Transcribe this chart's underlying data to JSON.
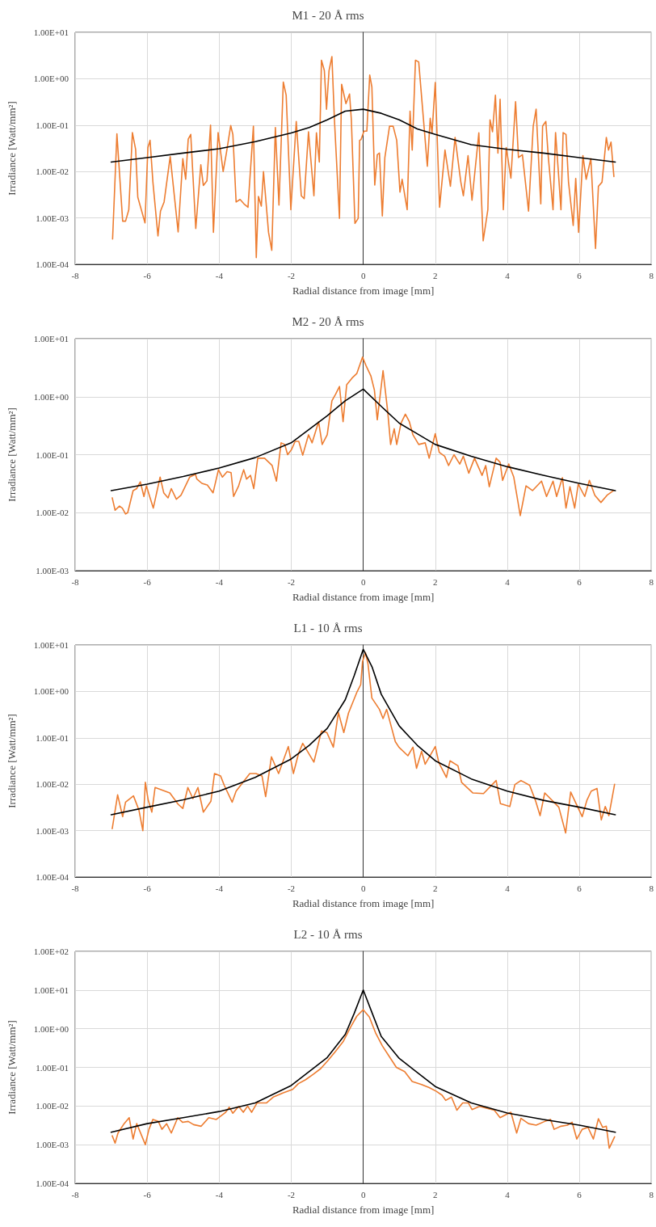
{
  "chart_data": [
    {
      "type": "line",
      "title": "M1 - 20 Å rms",
      "xlabel": "Radial distance from image [mm]",
      "ylabel": "Irradiance [Watt/mm²]",
      "log": "y",
      "grid": true,
      "marker": "none",
      "line_style": "solid",
      "xlim": [
        -8,
        8
      ],
      "xticks": [
        -8,
        -6,
        -4,
        -2,
        0,
        2,
        4,
        6,
        8
      ],
      "ylim": [
        0.0001,
        10
      ],
      "yticks": [
        {
          "value": 0.0001,
          "label": "1.00E-04"
        },
        {
          "value": 0.001,
          "label": "1.00E-03"
        },
        {
          "value": 0.01,
          "label": "1.00E-02"
        },
        {
          "value": 0.1,
          "label": "1.00E-01"
        },
        {
          "value": 1,
          "label": "1.00E+00"
        },
        {
          "value": 10,
          "label": "1.00E+01"
        }
      ],
      "series": [
        {
          "color": "#ed7d31",
          "x": [
            -6.96,
            -6.84,
            -6.68,
            -6.6,
            -6.51,
            -6.41,
            -6.32,
            -6.26,
            -6.06,
            -5.98,
            -5.92,
            -5.84,
            -5.7,
            -5.63,
            -5.53,
            -5.36,
            -5.14,
            -5.01,
            -4.93,
            -4.86,
            -4.79,
            -4.65,
            -4.51,
            -4.44,
            -4.34,
            -4.24,
            -4.16,
            -4.03,
            -3.89,
            -3.8,
            -3.68,
            -3.62,
            -3.53,
            -3.42,
            -3.31,
            -3.2,
            -3.05,
            -2.97,
            -2.91,
            -2.83,
            -2.77,
            -2.63,
            -2.54,
            -2.44,
            -2.34,
            -2.22,
            -2.14,
            -2.01,
            -1.86,
            -1.72,
            -1.64,
            -1.52,
            -1.37,
            -1.3,
            -1.22,
            -1.16,
            -1.08,
            -1.02,
            -0.95,
            -0.87,
            -0.8,
            -0.66,
            -0.6,
            -0.48,
            -0.38,
            -0.33,
            -0.23,
            -0.14,
            -0.1,
            -0.06,
            0.02,
            0.1,
            0.18,
            0.24,
            0.32,
            0.39,
            0.45,
            0.53,
            0.6,
            0.73,
            0.83,
            0.93,
            1.02,
            1.08,
            1.22,
            1.3,
            1.36,
            1.45,
            1.54,
            1.78,
            1.86,
            1.91,
            2.0,
            2.12,
            2.27,
            2.42,
            2.55,
            2.71,
            2.78,
            2.91,
            3.02,
            3.21,
            3.33,
            3.46,
            3.52,
            3.59,
            3.67,
            3.74,
            3.8,
            3.89,
            3.97,
            4.1,
            4.23,
            4.31,
            4.42,
            4.59,
            4.72,
            4.8,
            4.93,
            4.98,
            5.07,
            5.14,
            5.27,
            5.34,
            5.41,
            5.49,
            5.55,
            5.63,
            5.7,
            5.83,
            5.9,
            5.98,
            6.1,
            6.19,
            6.32,
            6.45,
            6.53,
            6.63,
            6.75,
            6.81,
            6.88,
            6.96
          ],
          "values": [
            0.00035,
            0.065,
            0.00085,
            0.00085,
            0.0015,
            0.069,
            0.03,
            0.0028,
            0.00078,
            0.033,
            0.047,
            0.0059,
            0.00041,
            0.0014,
            0.0022,
            0.021,
            0.0005,
            0.019,
            0.0068,
            0.05,
            0.063,
            0.00059,
            0.014,
            0.005,
            0.0063,
            0.1,
            0.00049,
            0.069,
            0.01,
            0.025,
            0.098,
            0.063,
            0.0022,
            0.0025,
            0.002,
            0.0017,
            0.095,
            0.00014,
            0.0029,
            0.0018,
            0.01,
            0.00049,
            0.0002,
            0.089,
            0.0019,
            0.85,
            0.44,
            0.0015,
            0.12,
            0.003,
            0.0026,
            0.072,
            0.003,
            0.068,
            0.016,
            2.5,
            1.5,
            0.22,
            1.5,
            3.0,
            0.13,
            0.00098,
            0.76,
            0.29,
            0.47,
            0.13,
            0.00076,
            0.00098,
            0.047,
            0.049,
            0.074,
            0.074,
            1.2,
            0.66,
            0.0051,
            0.023,
            0.025,
            0.0011,
            0.02,
            0.095,
            0.095,
            0.047,
            0.0036,
            0.0068,
            0.0015,
            0.2,
            0.029,
            2.5,
            2.3,
            0.013,
            0.14,
            0.068,
            0.83,
            0.0017,
            0.029,
            0.0048,
            0.054,
            0.0059,
            0.003,
            0.022,
            0.0024,
            0.068,
            0.00032,
            0.0015,
            0.13,
            0.072,
            0.44,
            0.025,
            0.36,
            0.0015,
            0.033,
            0.0072,
            0.32,
            0.02,
            0.023,
            0.0014,
            0.095,
            0.22,
            0.002,
            0.095,
            0.12,
            0.02,
            0.0015,
            0.069,
            0.012,
            0.0015,
            0.069,
            0.063,
            0.0059,
            0.00069,
            0.0071,
            0.00049,
            0.022,
            0.0068,
            0.019,
            0.00022,
            0.0048,
            0.0059,
            0.054,
            0.029,
            0.043,
            0.0078
          ]
        },
        {
          "color": "#000000",
          "x": [
            -7,
            -6,
            -5,
            -4,
            -3,
            -2,
            -1.5,
            -1,
            -0.5,
            0,
            0.5,
            1,
            1.5,
            2,
            3,
            4,
            5,
            6,
            7
          ],
          "values": [
            0.016,
            0.02,
            0.025,
            0.031,
            0.044,
            0.068,
            0.089,
            0.13,
            0.2,
            0.22,
            0.18,
            0.13,
            0.083,
            0.063,
            0.038,
            0.03,
            0.025,
            0.02,
            0.016
          ]
        }
      ]
    },
    {
      "type": "line",
      "title": "M2 - 20 Å rms",
      "xlabel": "Radial distance from image [mm]",
      "ylabel": "Irradiance [Watt/mm²]",
      "log": "y",
      "grid": true,
      "marker": "none",
      "line_style": "solid",
      "xlim": [
        -8,
        8
      ],
      "xticks": [
        -8,
        -6,
        -4,
        -2,
        0,
        2,
        4,
        6,
        8
      ],
      "ylim": [
        0.001,
        10
      ],
      "yticks": [
        {
          "value": 0.001,
          "label": "1.00E-03"
        },
        {
          "value": 0.01,
          "label": "1.00E-02"
        },
        {
          "value": 0.1,
          "label": "1.00E-01"
        },
        {
          "value": 1,
          "label": "1.00E+00"
        },
        {
          "value": 10,
          "label": "1.00E+01"
        }
      ],
      "series": [
        {
          "color": "#ed7d31",
          "x": [
            -6.97,
            -6.89,
            -6.77,
            -6.69,
            -6.6,
            -6.54,
            -6.39,
            -6.29,
            -6.19,
            -6.09,
            -6.02,
            -5.93,
            -5.83,
            -5.64,
            -5.54,
            -5.42,
            -5.33,
            -5.19,
            -5.06,
            -4.82,
            -4.66,
            -4.62,
            -4.48,
            -4.33,
            -4.17,
            -4.02,
            -3.91,
            -3.78,
            -3.67,
            -3.6,
            -3.46,
            -3.32,
            -3.24,
            -3.13,
            -3.04,
            -2.93,
            -2.74,
            -2.53,
            -2.41,
            -2.28,
            -2.18,
            -2.1,
            -2.0,
            -1.89,
            -1.79,
            -1.68,
            -1.52,
            -1.42,
            -1.24,
            -1.14,
            -1.0,
            -0.87,
            -0.77,
            -0.66,
            -0.56,
            -0.46,
            -0.31,
            -0.18,
            -0.02,
            0.08,
            0.21,
            0.31,
            0.39,
            0.55,
            0.68,
            0.76,
            0.86,
            0.93,
            1.05,
            1.17,
            1.28,
            1.38,
            1.54,
            1.72,
            1.83,
            2.0,
            2.11,
            2.26,
            2.37,
            2.52,
            2.68,
            2.78,
            2.93,
            3.09,
            3.3,
            3.4,
            3.5,
            3.69,
            3.8,
            3.87,
            4.04,
            4.18,
            4.36,
            4.52,
            4.7,
            4.95,
            5.09,
            5.27,
            5.37,
            5.53,
            5.63,
            5.74,
            5.87,
            5.97,
            6.15,
            6.28,
            6.43,
            6.6,
            6.77,
            6.95
          ],
          "values": [
            0.018,
            0.011,
            0.013,
            0.012,
            0.0095,
            0.01,
            0.024,
            0.026,
            0.034,
            0.019,
            0.029,
            0.019,
            0.012,
            0.041,
            0.022,
            0.018,
            0.026,
            0.017,
            0.02,
            0.041,
            0.046,
            0.038,
            0.032,
            0.03,
            0.022,
            0.055,
            0.041,
            0.051,
            0.049,
            0.019,
            0.029,
            0.055,
            0.038,
            0.044,
            0.026,
            0.087,
            0.087,
            0.065,
            0.035,
            0.16,
            0.15,
            0.1,
            0.12,
            0.17,
            0.17,
            0.098,
            0.22,
            0.16,
            0.37,
            0.15,
            0.22,
            0.85,
            1.1,
            1.5,
            0.37,
            1.6,
            2.1,
            2.5,
            4.8,
            3.4,
            2.3,
            1.3,
            0.4,
            2.8,
            0.55,
            0.15,
            0.28,
            0.15,
            0.35,
            0.5,
            0.37,
            0.22,
            0.15,
            0.16,
            0.087,
            0.23,
            0.11,
            0.094,
            0.065,
            0.1,
            0.069,
            0.094,
            0.048,
            0.087,
            0.044,
            0.065,
            0.028,
            0.087,
            0.074,
            0.036,
            0.069,
            0.041,
            0.0089,
            0.029,
            0.024,
            0.035,
            0.019,
            0.035,
            0.019,
            0.04,
            0.012,
            0.028,
            0.012,
            0.031,
            0.019,
            0.036,
            0.02,
            0.015,
            0.02,
            0.024
          ]
        },
        {
          "color": "#000000",
          "x": [
            -7,
            -6,
            -5,
            -4,
            -3,
            -2,
            -1,
            -0.5,
            0,
            0.5,
            1,
            2,
            3,
            4,
            5,
            6,
            7
          ],
          "values": [
            0.024,
            0.031,
            0.042,
            0.059,
            0.089,
            0.16,
            0.47,
            0.85,
            1.35,
            0.68,
            0.35,
            0.15,
            0.094,
            0.062,
            0.044,
            0.032,
            0.024
          ]
        }
      ]
    },
    {
      "type": "line",
      "title": "L1 - 10 Å rms",
      "xlabel": "Radial distance from image [mm]",
      "ylabel": "Irradiance [Watt/mm²]",
      "log": "y",
      "grid": true,
      "marker": "none",
      "line_style": "solid",
      "xlim": [
        -8,
        8
      ],
      "xticks": [
        -8,
        -6,
        -4,
        -2,
        0,
        2,
        4,
        6,
        8
      ],
      "ylim": [
        0.0001,
        10
      ],
      "yticks": [
        {
          "value": 0.0001,
          "label": "1.00E-04"
        },
        {
          "value": 0.001,
          "label": "1.00E-03"
        },
        {
          "value": 0.01,
          "label": "1.00E-02"
        },
        {
          "value": 0.1,
          "label": "1.00E-01"
        },
        {
          "value": 1,
          "label": "1.00E+00"
        },
        {
          "value": 10,
          "label": "1.00E+01"
        }
      ],
      "series": [
        {
          "color": "#ed7d31",
          "x": [
            -6.97,
            -6.82,
            -6.68,
            -6.6,
            -6.38,
            -6.23,
            -6.12,
            -6.05,
            -5.97,
            -5.87,
            -5.78,
            -5.37,
            -5.14,
            -5.01,
            -4.87,
            -4.73,
            -4.59,
            -4.44,
            -4.23,
            -4.13,
            -3.96,
            -3.86,
            -3.64,
            -3.53,
            -3.15,
            -2.98,
            -2.81,
            -2.71,
            -2.55,
            -2.35,
            -2.08,
            -1.94,
            -1.8,
            -1.68,
            -1.37,
            -1.16,
            -1.01,
            -0.83,
            -0.69,
            -0.54,
            -0.41,
            -0.18,
            -0.07,
            -0.02,
            0.06,
            0.13,
            0.24,
            0.45,
            0.55,
            0.65,
            0.89,
            0.99,
            1.24,
            1.38,
            1.48,
            1.62,
            1.72,
            2.0,
            2.1,
            2.31,
            2.41,
            2.63,
            2.73,
            3.04,
            3.34,
            3.69,
            3.81,
            4.07,
            4.21,
            4.38,
            4.62,
            4.78,
            4.91,
            5.04,
            5.43,
            5.62,
            5.76,
            6.08,
            6.21,
            6.33,
            6.49,
            6.61,
            6.72,
            6.82,
            6.98
          ],
          "values": [
            0.0011,
            0.0059,
            0.002,
            0.0041,
            0.0056,
            0.0028,
            0.001,
            0.011,
            0.0045,
            0.0025,
            0.0085,
            0.0065,
            0.0037,
            0.003,
            0.0085,
            0.0049,
            0.0085,
            0.0025,
            0.0043,
            0.017,
            0.015,
            0.0095,
            0.0041,
            0.0071,
            0.017,
            0.017,
            0.015,
            0.0054,
            0.039,
            0.017,
            0.065,
            0.017,
            0.045,
            0.076,
            0.03,
            0.14,
            0.13,
            0.063,
            0.35,
            0.13,
            0.34,
            0.95,
            1.4,
            4.4,
            6.9,
            4.0,
            0.72,
            0.41,
            0.26,
            0.41,
            0.083,
            0.063,
            0.041,
            0.063,
            0.022,
            0.051,
            0.027,
            0.065,
            0.029,
            0.014,
            0.032,
            0.025,
            0.011,
            0.0065,
            0.0063,
            0.012,
            0.0038,
            0.0033,
            0.0098,
            0.012,
            0.0095,
            0.0045,
            0.0021,
            0.0065,
            0.0032,
            0.00089,
            0.0068,
            0.002,
            0.0045,
            0.0071,
            0.0081,
            0.0017,
            0.0033,
            0.0021,
            0.01
          ]
        },
        {
          "color": "#000000",
          "x": [
            -7,
            -6,
            -5,
            -4,
            -3,
            -2,
            -1.5,
            -1,
            -0.5,
            -0.25,
            0,
            0.25,
            0.5,
            1,
            1.5,
            2,
            3,
            4,
            5,
            6,
            7
          ],
          "values": [
            0.0022,
            0.0032,
            0.0046,
            0.0071,
            0.014,
            0.035,
            0.069,
            0.16,
            0.66,
            2.2,
            8.1,
            3.3,
            0.87,
            0.18,
            0.069,
            0.032,
            0.013,
            0.0071,
            0.0045,
            0.0032,
            0.0022
          ]
        }
      ]
    },
    {
      "type": "line",
      "title": "L2 - 10 Å rms",
      "xlabel": "Radial distance from image [mm]",
      "ylabel": "Irradiance [Watt/mm²]",
      "log": "y",
      "grid": true,
      "marker": "none",
      "line_style": "solid",
      "xlim": [
        -8,
        8
      ],
      "xticks": [
        -8,
        -6,
        -4,
        -2,
        0,
        2,
        4,
        6,
        8
      ],
      "ylim": [
        0.0001,
        100
      ],
      "yticks": [
        {
          "value": 0.0001,
          "label": "1.00E-04"
        },
        {
          "value": 0.001,
          "label": "1.00E-03"
        },
        {
          "value": 0.01,
          "label": "1.00E-02"
        },
        {
          "value": 0.1,
          "label": "1.00E-01"
        },
        {
          "value": 1,
          "label": "1.00E+00"
        },
        {
          "value": 10,
          "label": "1.00E+01"
        },
        {
          "value": 100,
          "label": "1.00E+02"
        }
      ],
      "series": [
        {
          "color": "#ed7d31",
          "x": [
            -6.97,
            -6.89,
            -6.81,
            -6.64,
            -6.5,
            -6.39,
            -6.29,
            -6.05,
            -5.95,
            -5.84,
            -5.69,
            -5.59,
            -5.46,
            -5.33,
            -5.15,
            -5.02,
            -4.86,
            -4.71,
            -4.5,
            -4.29,
            -4.08,
            -3.82,
            -3.72,
            -3.62,
            -3.46,
            -3.33,
            -3.21,
            -3.1,
            -2.95,
            -2.69,
            -2.5,
            -2.22,
            -1.96,
            -1.8,
            -1.6,
            -1.39,
            -1.18,
            -0.98,
            -0.77,
            -0.56,
            -0.35,
            -0.18,
            0,
            0.17,
            0.34,
            0.53,
            0.74,
            0.92,
            1.15,
            1.36,
            1.62,
            1.83,
            2.03,
            2.19,
            2.29,
            2.45,
            2.6,
            2.76,
            2.92,
            3.02,
            3.23,
            3.44,
            3.64,
            3.8,
            3.95,
            4.1,
            4.26,
            4.38,
            4.59,
            4.8,
            5.04,
            5.2,
            5.3,
            5.49,
            5.67,
            5.8,
            5.93,
            6.08,
            6.24,
            6.39,
            6.53,
            6.65,
            6.75,
            6.83,
            6.98
          ],
          "values": [
            0.0017,
            0.0011,
            0.002,
            0.0035,
            0.005,
            0.0014,
            0.0035,
            0.001,
            0.0025,
            0.0045,
            0.004,
            0.0025,
            0.0035,
            0.002,
            0.005,
            0.0038,
            0.004,
            0.0033,
            0.003,
            0.005,
            0.0045,
            0.0069,
            0.0093,
            0.0065,
            0.0098,
            0.0069,
            0.01,
            0.0069,
            0.012,
            0.012,
            0.017,
            0.022,
            0.027,
            0.038,
            0.048,
            0.066,
            0.093,
            0.15,
            0.26,
            0.46,
            1.1,
            2.1,
            3.1,
            2.0,
            0.79,
            0.36,
            0.18,
            0.1,
            0.078,
            0.043,
            0.036,
            0.03,
            0.024,
            0.019,
            0.014,
            0.017,
            0.0078,
            0.012,
            0.012,
            0.0081,
            0.0098,
            0.0087,
            0.0078,
            0.005,
            0.0059,
            0.0069,
            0.002,
            0.0048,
            0.0035,
            0.0032,
            0.004,
            0.0045,
            0.0025,
            0.003,
            0.0032,
            0.0038,
            0.0014,
            0.0025,
            0.0028,
            0.0014,
            0.0047,
            0.0028,
            0.003,
            0.00081,
            0.0016
          ]
        },
        {
          "color": "#000000",
          "x": [
            -7,
            -6,
            -5,
            -4,
            -3,
            -2,
            -1,
            -0.5,
            -0.25,
            0,
            0.25,
            0.5,
            1,
            2,
            3,
            4,
            5,
            6,
            7
          ],
          "values": [
            0.0021,
            0.0035,
            0.005,
            0.0072,
            0.012,
            0.034,
            0.18,
            0.71,
            2.5,
            10,
            2.5,
            0.63,
            0.17,
            0.032,
            0.012,
            0.0066,
            0.0045,
            0.0032,
            0.0021
          ]
        }
      ]
    }
  ]
}
